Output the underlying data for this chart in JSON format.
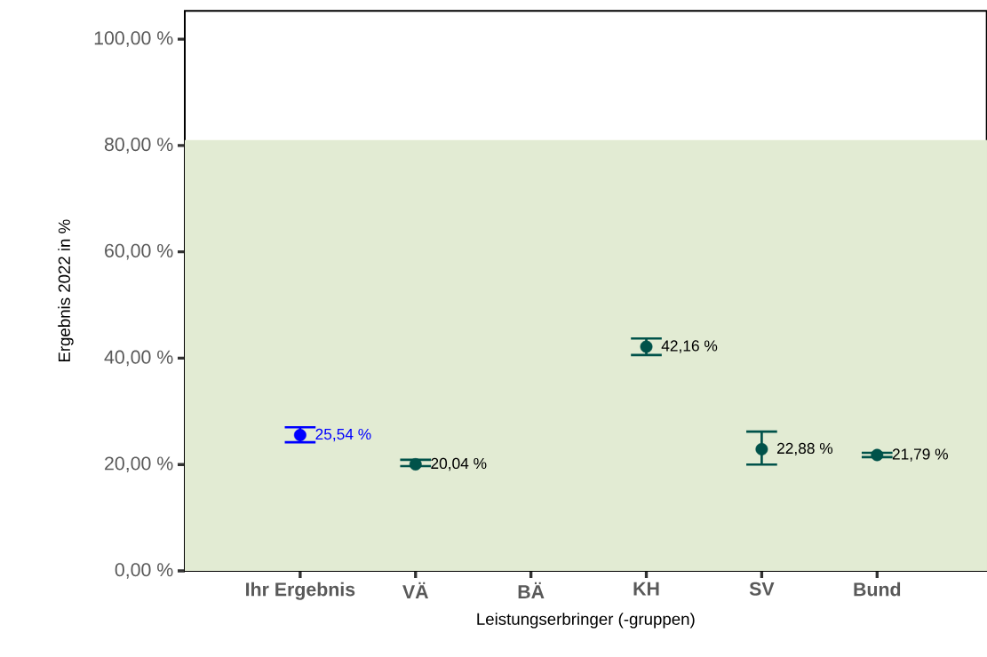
{
  "chart_data": {
    "type": "scatter",
    "xlabel": "Leistungserbringer (-gruppen)",
    "ylabel": "Ergebnis 2022 in %",
    "categories": [
      "Ihr Ergebnis",
      "VÄ",
      "BÄ",
      "KH",
      "SV",
      "Bund"
    ],
    "values": [
      25.54,
      20.04,
      null,
      42.16,
      22.88,
      21.79
    ],
    "errors": [
      [
        24.2,
        27.0
      ],
      [
        19.7,
        20.9
      ],
      null,
      [
        40.6,
        43.7
      ],
      [
        20.0,
        26.2
      ],
      [
        21.4,
        22.2
      ]
    ],
    "colors": [
      "#0000ff",
      "#00524a",
      "#00524a",
      "#00524a",
      "#00524a",
      "#00524a"
    ],
    "value_labels": [
      "25,54 %",
      "20,04 %",
      null,
      "42,16 %",
      "22,88 %",
      "21,79 %"
    ],
    "ylim": [
      0,
      105.3
    ],
    "yticks": [
      {
        "value": 0,
        "label": "0,00 %"
      },
      {
        "value": 20,
        "label": "20,00 %"
      },
      {
        "value": 40,
        "label": "40,00 %"
      },
      {
        "value": 60,
        "label": "60,00 %"
      },
      {
        "value": 80,
        "label": "80,00 %"
      },
      {
        "value": 100,
        "label": "100,00 %"
      }
    ],
    "bands": [
      {
        "axis": "y",
        "from": 0,
        "to": 81,
        "color": "#e2ebd3"
      }
    ],
    "grid": false
  }
}
